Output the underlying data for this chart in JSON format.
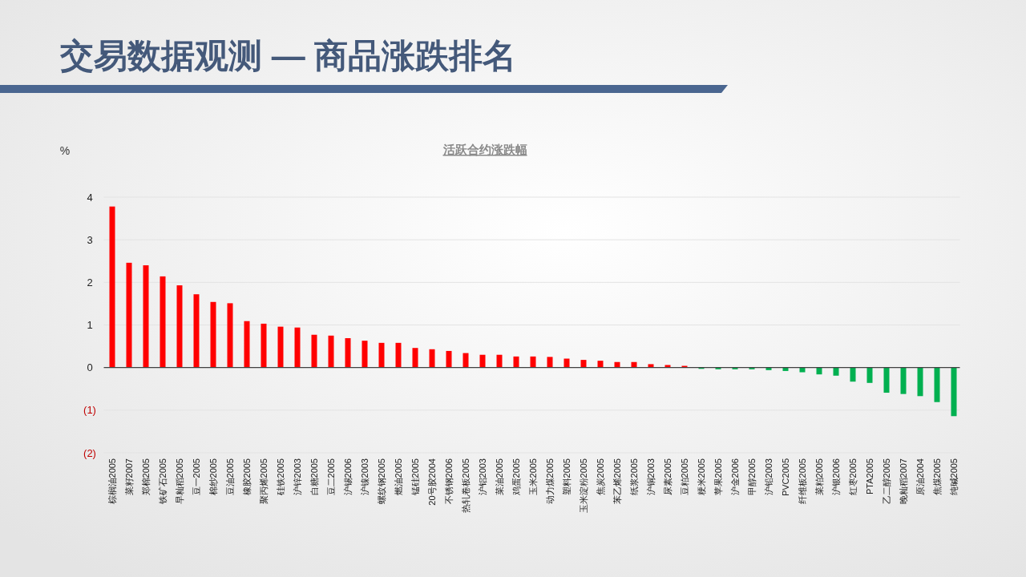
{
  "chart_data": {
    "type": "bar",
    "title": "交易数据观测 — 商品涨跌排名",
    "subtitle": "活跃合约涨跌幅",
    "ylabel": "%",
    "categories": [
      "棕榈油2005",
      "菜籽2007",
      "郑棉2005",
      "铁矿石2005",
      "早籼稻2005",
      "豆一2005",
      "棉纱2005",
      "豆油2005",
      "橡胶2005",
      "聚丙烯2005",
      "硅铁2005",
      "沪锌2003",
      "白糖2005",
      "豆二2005",
      "沪锡2006",
      "沪镍2003",
      "螺纹钢2005",
      "燃油2005",
      "锰硅2005",
      "20号胶2004",
      "不锈钢2006",
      "热轧卷板2005",
      "沪铝2003",
      "菜油2005",
      "鸡蛋2005",
      "玉米2005",
      "动力煤2005",
      "塑料2005",
      "玉米淀粉2005",
      "焦炭2005",
      "苯乙烯2005",
      "纸浆2005",
      "沪铜2003",
      "尿素2005",
      "豆粕2005",
      "粳米2005",
      "苹果2005",
      "沪金2006",
      "甲醇2005",
      "沪铅2003",
      "PVC2005",
      "纤维板2005",
      "菜粕2005",
      "沪银2006",
      "红枣2005",
      "PTA2005",
      "乙二醇2005",
      "晚籼稻2007",
      "原油2004",
      "焦煤2005",
      "纯碱2005"
    ],
    "values": [
      3.78,
      2.46,
      2.4,
      2.14,
      1.93,
      1.72,
      1.54,
      1.51,
      1.09,
      1.03,
      0.96,
      0.94,
      0.77,
      0.75,
      0.69,
      0.63,
      0.58,
      0.58,
      0.46,
      0.43,
      0.39,
      0.34,
      0.3,
      0.3,
      0.26,
      0.26,
      0.25,
      0.21,
      0.18,
      0.16,
      0.13,
      0.13,
      0.08,
      0.06,
      0.04,
      -0.03,
      -0.04,
      -0.04,
      -0.04,
      -0.06,
      -0.08,
      -0.11,
      -0.16,
      -0.19,
      -0.33,
      -0.36,
      -0.59,
      -0.62,
      -0.67,
      -0.81,
      -1.14
    ],
    "colors": [
      "#ff0000",
      "#ff0000",
      "#ff0000",
      "#ff0000",
      "#ff0000",
      "#ff0000",
      "#ff0000",
      "#ff0000",
      "#ff0000",
      "#ff0000",
      "#ff0000",
      "#ff0000",
      "#ff0000",
      "#ff0000",
      "#ff0000",
      "#ff0000",
      "#ff0000",
      "#ff0000",
      "#ff0000",
      "#ff0000",
      "#ff0000",
      "#ff0000",
      "#ff0000",
      "#ff0000",
      "#ff0000",
      "#ff0000",
      "#ff0000",
      "#ff0000",
      "#ff0000",
      "#ff0000",
      "#ff0000",
      "#ff0000",
      "#ff0000",
      "#ff0000",
      "#ff0000",
      "#00b050",
      "#00b050",
      "#00b050",
      "#00b050",
      "#00b050",
      "#00b050",
      "#00b050",
      "#00b050",
      "#00b050",
      "#00b050",
      "#00b050",
      "#00b050",
      "#00b050",
      "#00b050",
      "#00b050",
      "#00b050"
    ],
    "ylim": [
      -2,
      4
    ],
    "yticks": [
      {
        "value": -2,
        "label": "(2)"
      },
      {
        "value": -1,
        "label": "(1)"
      },
      0,
      1,
      2,
      3,
      4
    ],
    "grid": "y"
  }
}
